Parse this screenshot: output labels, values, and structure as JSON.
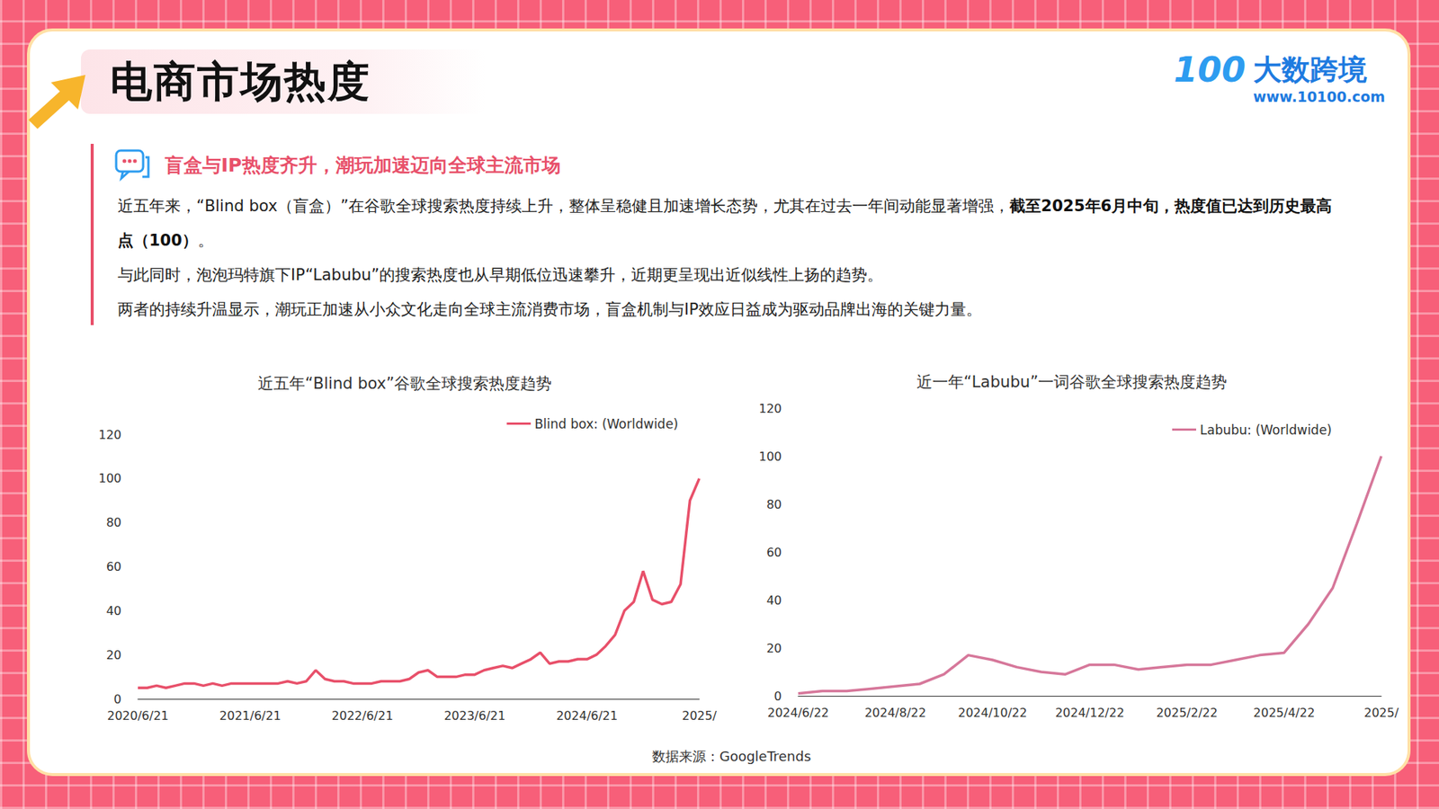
{
  "header": {
    "title": "电商市场热度",
    "logo_mark": "100",
    "logo_name": "大数跨境",
    "logo_url": "www.10100.com"
  },
  "summary": {
    "heading": "盲盒与IP热度齐升，潮玩加速迈向全球主流市场",
    "paragraphs": [
      [
        {
          "text": "近五年来，“Blind box（盲盒）”在谷歌全球搜索热度持续上升，整体呈稳健且加速增长态势，尤其在过去一年间动能显著增强，",
          "bold": false
        },
        {
          "text": "截至2025年6月中旬，热度值已达到历史最高点（100）",
          "bold": true
        },
        {
          "text": "。",
          "bold": false
        }
      ],
      [
        {
          "text": "与此同时，泡泡玛特旗下IP“Labubu”的搜索热度也从早期低位迅速攀升，近期更呈现出近似线性上扬的趋势。",
          "bold": false
        }
      ],
      [
        {
          "text": "两者的持续升温显示，潮玩正加速从小众文化走向全球主流消费市场，盲盒机制与IP效应日益成为驱动品牌出海的关键力量。",
          "bold": false
        }
      ]
    ]
  },
  "chart_data": [
    {
      "type": "line",
      "title": "近五年“Blind box”谷歌全球搜索热度趋势",
      "categories": [
        "2020/6/21",
        null,
        null,
        null,
        null,
        null,
        null,
        null,
        null,
        null,
        null,
        null,
        "2021/6/21",
        null,
        null,
        null,
        null,
        null,
        null,
        null,
        null,
        null,
        null,
        null,
        "2022/6/21",
        null,
        null,
        null,
        null,
        null,
        null,
        null,
        null,
        null,
        null,
        null,
        "2023/6/21",
        null,
        null,
        null,
        null,
        null,
        null,
        null,
        null,
        null,
        null,
        null,
        "2024/6/21",
        null,
        null,
        null,
        null,
        null,
        null,
        null,
        null,
        null,
        null,
        null,
        "2025/"
      ],
      "series": [
        {
          "name": "Blind box: (Worldwide)",
          "color": "#e8506a",
          "values": [
            5,
            5,
            6,
            5,
            6,
            7,
            7,
            6,
            7,
            6,
            7,
            7,
            7,
            7,
            7,
            7,
            8,
            7,
            8,
            13,
            9,
            8,
            8,
            7,
            7,
            7,
            8,
            8,
            8,
            9,
            12,
            13,
            10,
            10,
            10,
            11,
            11,
            13,
            14,
            15,
            14,
            16,
            18,
            21,
            16,
            17,
            17,
            18,
            18,
            20,
            24,
            29,
            40,
            44,
            58,
            45,
            43,
            44,
            52,
            90,
            100
          ]
        }
      ],
      "ylim": [
        0,
        120
      ],
      "yticks": [
        0,
        20,
        40,
        60,
        80,
        100,
        120
      ],
      "grid": false,
      "legend": "upper right"
    },
    {
      "type": "line",
      "title": "近一年“Labubu”一词谷歌全球搜索热度趋势",
      "categories": [
        "2024/6/22",
        null,
        null,
        null,
        "2024/8/22",
        null,
        null,
        null,
        "2024/10/22",
        null,
        null,
        null,
        "2024/12/22",
        null,
        null,
        null,
        "2025/2/22",
        null,
        null,
        null,
        "2025/4/22",
        null,
        null,
        null,
        "2025/"
      ],
      "series": [
        {
          "name": "Labubu: (Worldwide)",
          "color": "#d6779a",
          "values": [
            1,
            2,
            2,
            3,
            4,
            5,
            9,
            17,
            15,
            12,
            10,
            9,
            13,
            13,
            11,
            12,
            13,
            13,
            15,
            17,
            18,
            30,
            45,
            72,
            100
          ]
        }
      ],
      "ylim": [
        0,
        120
      ],
      "yticks": [
        0,
        20,
        40,
        60,
        80,
        100,
        120
      ],
      "grid": false,
      "legend": "upper right"
    }
  ],
  "source": "数据来源：GoogleTrends"
}
